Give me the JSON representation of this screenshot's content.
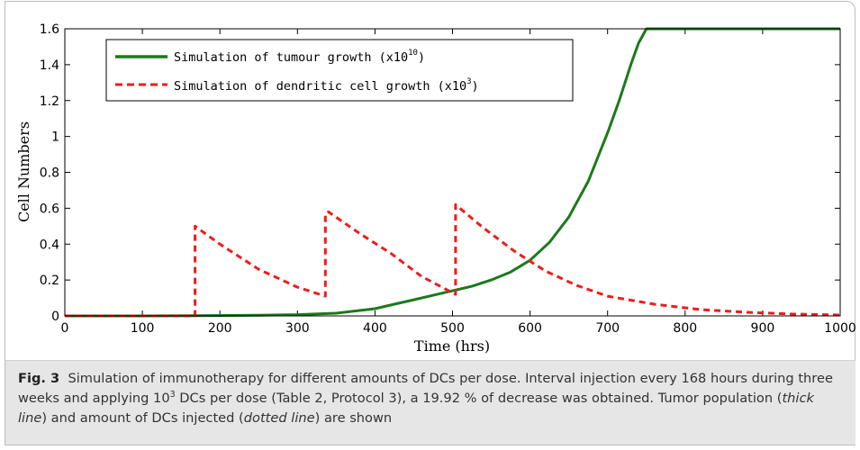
{
  "chart_data": {
    "type": "line",
    "title": "",
    "xlabel": "Time (hrs)",
    "ylabel": "Cell Numbers",
    "xlim": [
      0,
      1000
    ],
    "ylim": [
      0,
      1.6
    ],
    "xticks": [
      0,
      100,
      200,
      300,
      400,
      500,
      600,
      700,
      800,
      900,
      1000
    ],
    "yticks": [
      0,
      0.2,
      0.4,
      0.6,
      0.8,
      1,
      1.2,
      1.4,
      1.6
    ],
    "xtick_labels": [
      "0",
      "100",
      "200",
      "300",
      "400",
      "500",
      "600",
      "700",
      "800",
      "900",
      "1000"
    ],
    "ytick_labels": [
      "0",
      "0.2",
      "0.4",
      "0.6",
      "0.8",
      "1",
      "1.2",
      "1.4",
      "1.6"
    ],
    "grid": false,
    "legend_position": "top-left",
    "series": [
      {
        "name": "Simulation of tumour growth (x10",
        "name_sup": "10",
        "name_tail": ")",
        "color": "#1a7a1a",
        "style": "solid",
        "x": [
          0,
          100,
          200,
          250,
          300,
          350,
          400,
          425,
          450,
          475,
          500,
          525,
          550,
          575,
          600,
          625,
          650,
          675,
          700,
          715,
          730,
          740,
          750,
          800,
          850,
          900,
          950,
          1000
        ],
        "y": [
          0,
          0,
          0.002,
          0.004,
          0.007,
          0.015,
          0.04,
          0.065,
          0.09,
          0.115,
          0.14,
          0.165,
          0.2,
          0.245,
          0.31,
          0.41,
          0.55,
          0.75,
          1.02,
          1.2,
          1.4,
          1.52,
          1.6,
          1.6,
          1.6,
          1.6,
          1.6,
          1.6
        ]
      },
      {
        "name": "Simulation of dendritic cell growth (x10",
        "name_sup": "3",
        "name_tail": ")",
        "color": "#ee1c1c",
        "style": "dashed",
        "x": [
          0,
          168,
          168,
          200,
          250,
          300,
          336,
          336,
          340,
          380,
          420,
          460,
          504,
          504,
          540,
          580,
          620,
          660,
          700,
          760,
          820,
          880,
          940,
          1000
        ],
        "y": [
          0,
          0,
          0.5,
          0.4,
          0.26,
          0.16,
          0.11,
          0.57,
          0.58,
          0.46,
          0.35,
          0.22,
          0.12,
          0.62,
          0.49,
          0.36,
          0.25,
          0.17,
          0.11,
          0.065,
          0.035,
          0.02,
          0.01,
          0.005
        ]
      }
    ]
  },
  "caption": {
    "label": "Fig. 3",
    "text_1": "Simulation of immunotherapy for different amounts of DCs per dose. Interval injection every 168 hours during three weeks and applying 10",
    "sup": "3",
    "text_2": " DCs per dose (Table 2, Protocol 3), a 19.92 % of decrease was obtained. Tumor population (",
    "em_1": "thick line",
    "text_3": ") and amount of DCs injected (",
    "em_2": "dotted line",
    "text_4": ") are shown"
  }
}
